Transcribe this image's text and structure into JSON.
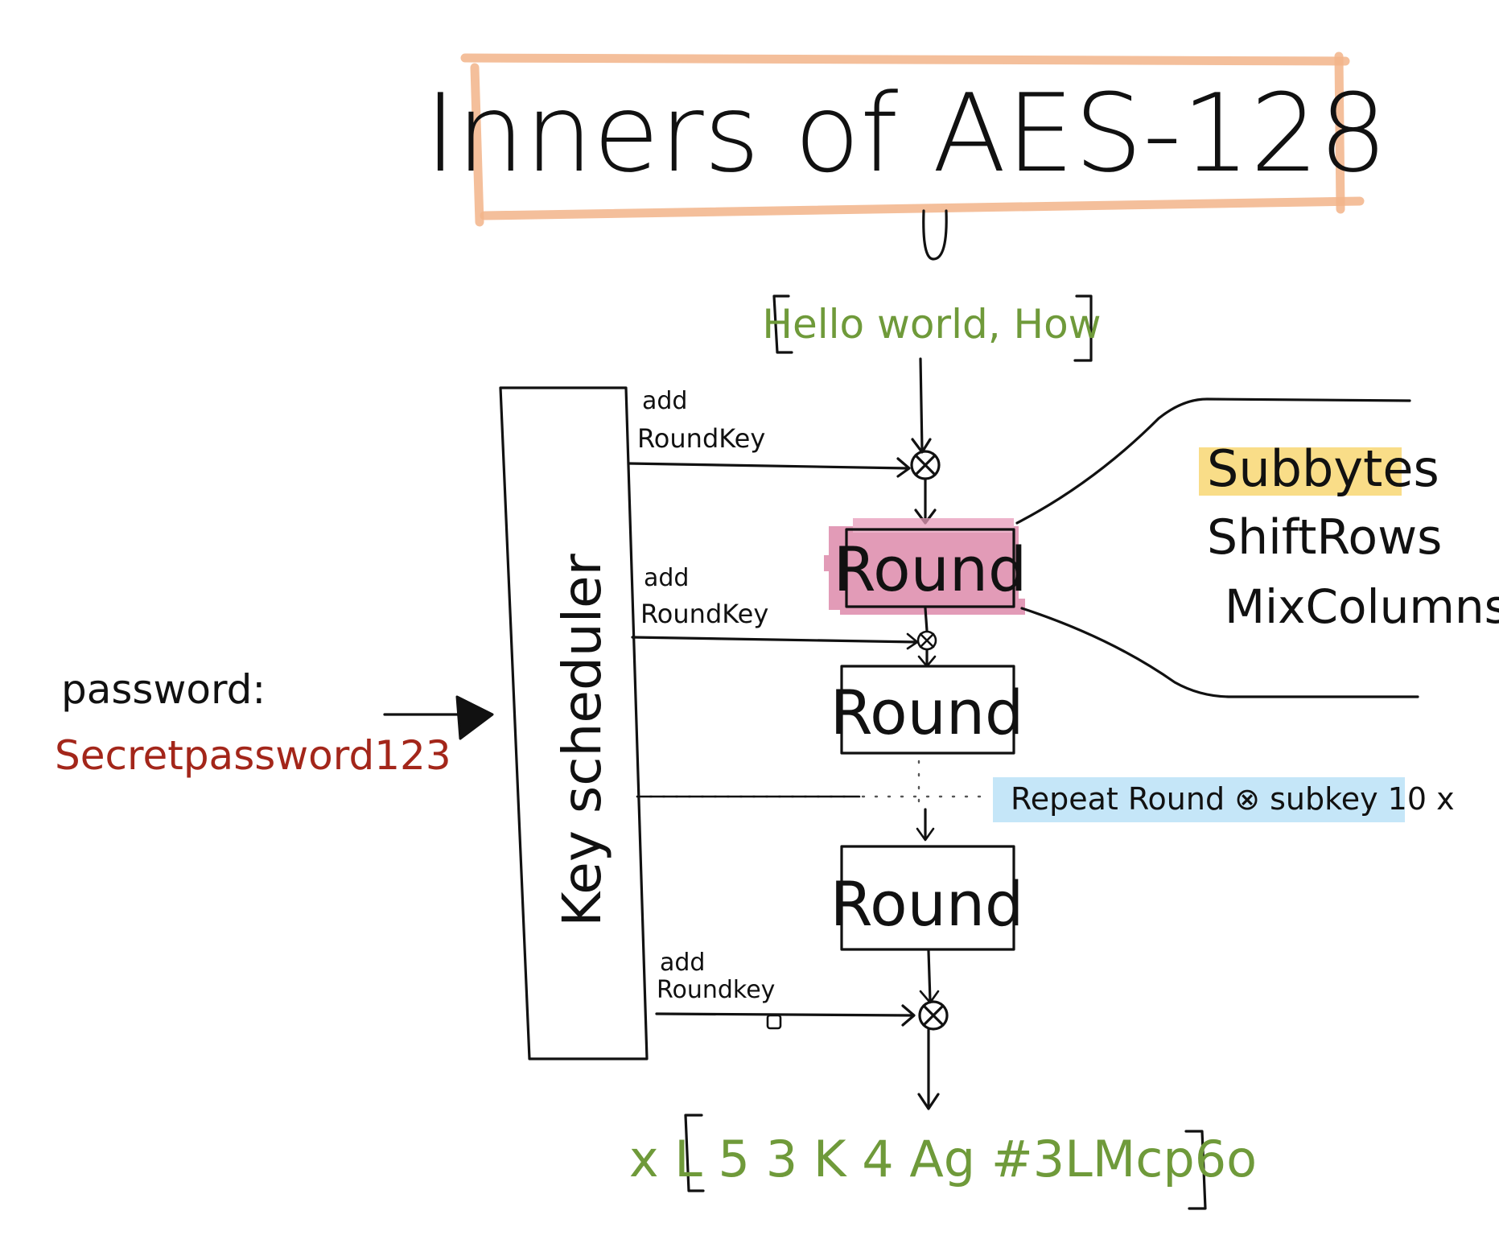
{
  "title": "Inners of AES-128",
  "plaintext": "Hello world, How",
  "ciphertext": "x L 5 3 K 4 Ag #3LMcp6o",
  "password_label": "password:",
  "password_value": "Secretpassword123",
  "key_scheduler_label": "Key scheduler",
  "add_round_key_labels": [
    {
      "line1": "add",
      "line2": "RoundKey"
    },
    {
      "line1": "add",
      "line2": "RoundKey"
    },
    {
      "line1": "add",
      "line2": "Roundkey"
    }
  ],
  "round_labels": [
    "Round",
    "Round",
    "Round"
  ],
  "round_steps": [
    "Subbytes",
    "ShiftRows",
    "MixColumns"
  ],
  "repeat_note": "Repeat Round ⊗ subkey 10 x",
  "xor_symbol": "⊗",
  "colors": {
    "title_box": "#f2b48a",
    "plaintext": "#6f9a3a",
    "ciphertext": "#6f9a3a",
    "password_value": "#a3261a",
    "round_highlight": "#d97aa0",
    "subbytes_highlight": "#f7d46a",
    "repeat_highlight": "#bfe3f7",
    "ink": "#111111"
  }
}
